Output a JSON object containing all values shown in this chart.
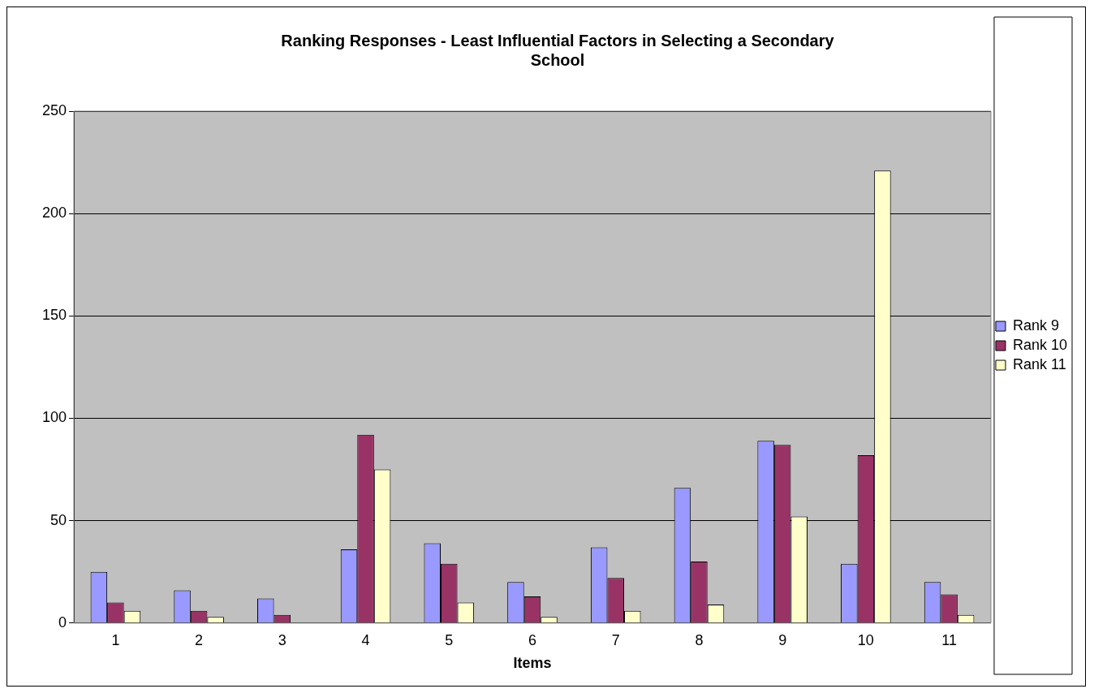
{
  "chart_data": {
    "type": "bar",
    "title": "Ranking Responses - Least Influential Factors in Selecting a Secondary School",
    "xlabel": "Items",
    "categories": [
      "1",
      "2",
      "3",
      "4",
      "5",
      "6",
      "7",
      "8",
      "9",
      "10",
      "11"
    ],
    "series": [
      {
        "name": "Rank 9",
        "color": "#9999ff",
        "values": [
          25,
          16,
          12,
          36,
          39,
          20,
          37,
          66,
          89,
          29,
          20
        ]
      },
      {
        "name": "Rank 10",
        "color": "#993366",
        "values": [
          10,
          6,
          4,
          92,
          29,
          13,
          22,
          30,
          87,
          82,
          14
        ]
      },
      {
        "name": "Rank 11",
        "color": "#ffffcc",
        "values": [
          6,
          3,
          0,
          75,
          10,
          3,
          6,
          9,
          52,
          221,
          4
        ]
      }
    ],
    "ylim": [
      0,
      250
    ],
    "yticks": [
      0,
      50,
      100,
      150,
      200,
      250
    ],
    "grid": "y",
    "legend": "right"
  }
}
